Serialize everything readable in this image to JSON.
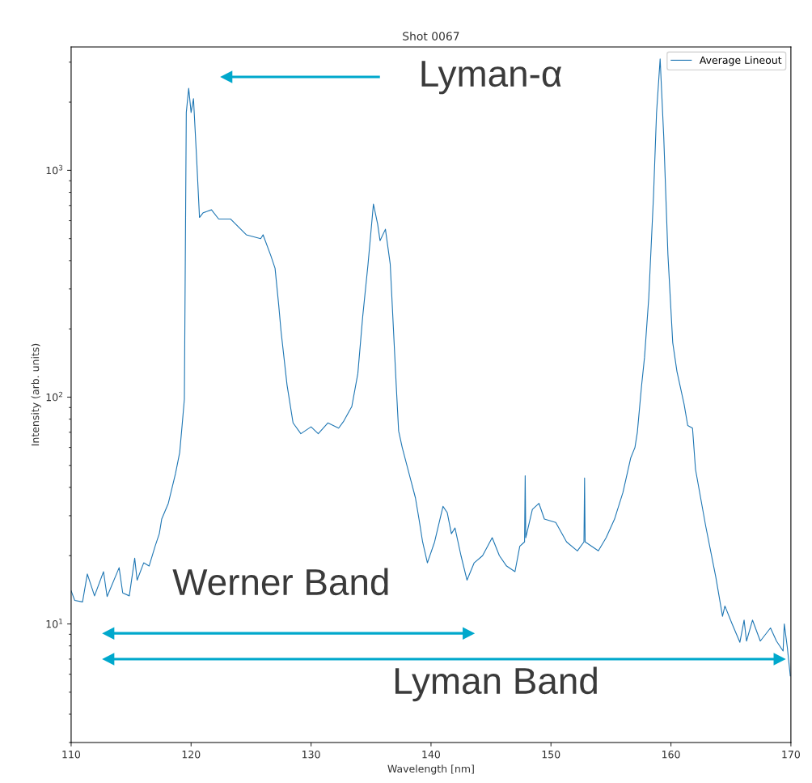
{
  "chart_data": {
    "type": "line",
    "title": "Shot 0067",
    "xlabel": "Wavelength [nm]",
    "ylabel": "Intensity (arb. units)",
    "log": "y",
    "xlim": [
      110,
      170
    ],
    "ylim": [
      3,
      3500
    ],
    "xticks": [
      110,
      120,
      130,
      140,
      150,
      160,
      170
    ],
    "yticks": [
      {
        "value": 10,
        "label": "10$^{1}$"
      },
      {
        "value": 100,
        "label": "10$^{2}$"
      },
      {
        "value": 1000,
        "label": "10$^{3}$"
      }
    ],
    "grid": false,
    "legend": "top right",
    "marker": "none",
    "line_style": "solid",
    "annotations": [
      "Lyman-α",
      "Werner Band",
      "Lyman Band"
    ],
    "series": [
      {
        "name": "Average Lineout",
        "color": "#1f77b4",
        "x": [
          110.0,
          110.3,
          110.95,
          111.35,
          111.95,
          112.7,
          113.0,
          114.0,
          114.3,
          114.85,
          115.3,
          115.5,
          116.05,
          116.5,
          117.0,
          117.35,
          117.55,
          118.1,
          118.7,
          119.05,
          119.25,
          119.44,
          119.6,
          119.8,
          120.0,
          120.2,
          120.45,
          120.7,
          121.0,
          121.7,
          122.3,
          123.3,
          124.6,
          125.8,
          126.0,
          126.65,
          127.0,
          127.3,
          127.5,
          128.0,
          128.5,
          129.15,
          130.0,
          130.6,
          131.4,
          132.3,
          132.7,
          133.4,
          133.9,
          134.3,
          134.75,
          135.2,
          135.55,
          135.75,
          136.2,
          136.6,
          137.1,
          137.3,
          137.6,
          138.7,
          139.0,
          139.3,
          139.7,
          140.3,
          141.0,
          141.35,
          141.7,
          142.0,
          142.5,
          143.0,
          143.6,
          144.3,
          145.1,
          145.7,
          146.3,
          147.0,
          147.4,
          147.8,
          147.85,
          147.9,
          148.45,
          149.0,
          149.45,
          150.4,
          151.3,
          152.2,
          152.75,
          152.8,
          152.85,
          153.95,
          154.6,
          155.3,
          156.0,
          156.65,
          157.0,
          157.2,
          157.55,
          157.8,
          158.15,
          158.55,
          158.8,
          159.1,
          159.4,
          159.75,
          160.15,
          160.5,
          161.1,
          161.4,
          161.8,
          162.05,
          162.9,
          163.75,
          164.3,
          164.5,
          165.1,
          165.75,
          166.1,
          166.3,
          166.8,
          167.45,
          168.3,
          168.8,
          169.35,
          169.45,
          169.7,
          169.95
        ],
        "values": [
          14,
          12.7,
          12.5,
          16.6,
          13.3,
          17,
          13.2,
          17.7,
          13.7,
          13.3,
          19.5,
          15.6,
          18.6,
          18,
          22,
          25,
          29,
          34,
          46,
          57,
          75,
          98,
          1800,
          2300,
          1800,
          2070,
          1160,
          620,
          650,
          670,
          610,
          610,
          520,
          500,
          520,
          420,
          370,
          256,
          195,
          113,
          77,
          69,
          74,
          69,
          77,
          73,
          78,
          91,
          127,
          225,
          386,
          710,
          580,
          490,
          550,
          386,
          113,
          71,
          60,
          36,
          29,
          23,
          18.6,
          23,
          33,
          31,
          25,
          26.5,
          20,
          15.6,
          18.6,
          20,
          24,
          20,
          18,
          17,
          22,
          23,
          45,
          24,
          32,
          34,
          29,
          28,
          23,
          21,
          23,
          44,
          23,
          21,
          24,
          29,
          38,
          54,
          60,
          70,
          112,
          150,
          273,
          775,
          1790,
          3100,
          1410,
          425,
          174,
          130,
          93,
          75,
          73,
          48,
          27,
          16,
          10.8,
          12,
          10,
          8.3,
          10.4,
          8.4,
          10.4,
          8.4,
          9.6,
          8.4,
          7.6,
          10,
          7.9,
          5.9
        ]
      }
    ]
  }
}
